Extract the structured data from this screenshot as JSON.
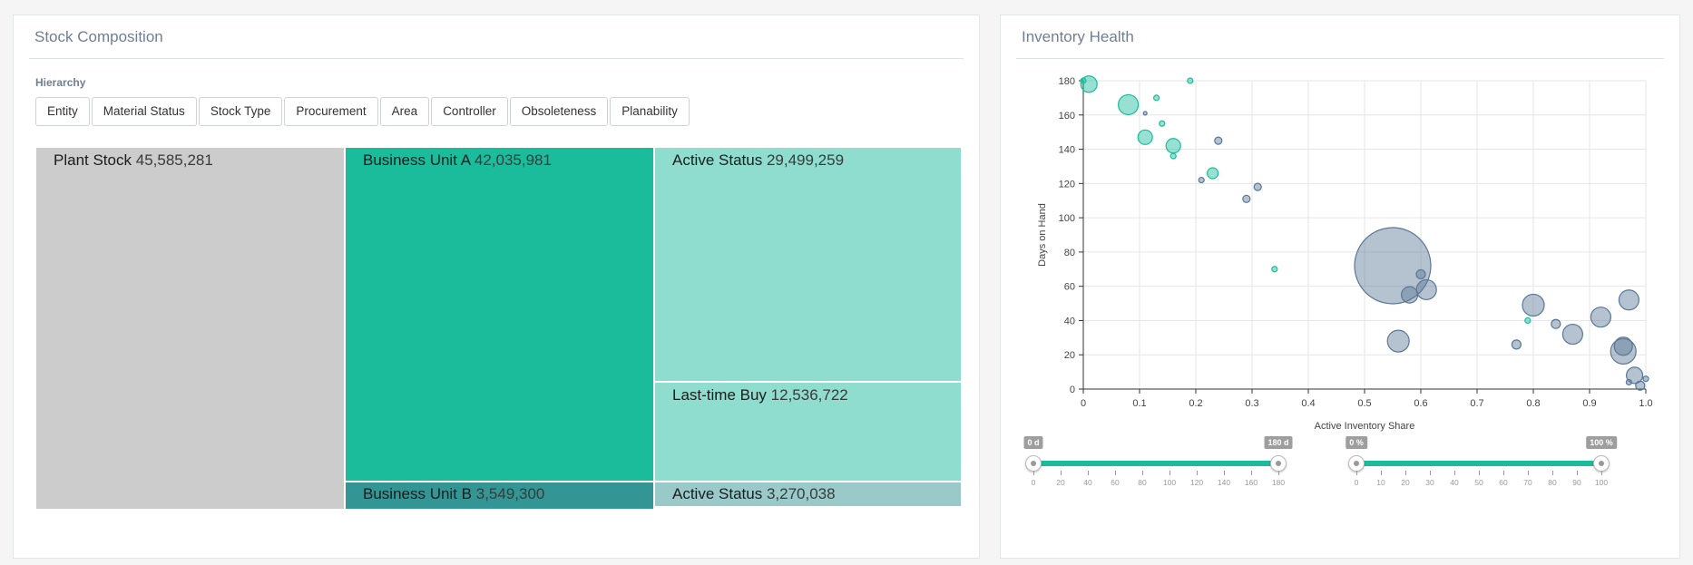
{
  "stock_panel": {
    "title": "Stock Composition",
    "hierarchy_label": "Hierarchy",
    "buttons": [
      "Entity",
      "Material Status",
      "Stock Type",
      "Procurement",
      "Area",
      "Controller",
      "Obsoleteness",
      "Planability"
    ],
    "tiles": [
      {
        "name": "Plant Stock",
        "value": "45,585,281",
        "color": "#cccccc"
      },
      {
        "name": "Business Unit A",
        "value": "42,035,981",
        "color": "#1abc9c"
      },
      {
        "name": "Business Unit B",
        "value": "3,549,300",
        "color": "#339594"
      },
      {
        "name": "Active Status",
        "value": "29,499,259",
        "color": "#8eddce"
      },
      {
        "name": "Last-time Buy",
        "value": "12,536,722",
        "color": "#8eddce"
      },
      {
        "name": "Active Status",
        "value": "3,270,038",
        "color": "#99cac9"
      }
    ]
  },
  "health_panel": {
    "title": "Inventory Health",
    "colors": {
      "teal": "#1abc9c",
      "slate": "#5a7796"
    }
  },
  "chart_data": {
    "type": "scatter",
    "xlabel": "Active Inventory Share",
    "ylabel": "Days on Hand",
    "xlim": [
      0,
      1
    ],
    "ylim": [
      0,
      180
    ],
    "x_ticks": [
      "0",
      "0.1",
      "0.2",
      "0.3",
      "0.4",
      "0.5",
      "0.6",
      "0.7",
      "0.8",
      "0.9",
      "1.0"
    ],
    "y_ticks": [
      "0",
      "20",
      "40",
      "60",
      "80",
      "100",
      "120",
      "140",
      "160",
      "180"
    ],
    "grid": true,
    "series": [
      {
        "color": "teal",
        "points": [
          {
            "x": 0.01,
            "y": 178,
            "r": 9
          },
          {
            "x": 0.0,
            "y": 180,
            "r": 3
          },
          {
            "x": 0.08,
            "y": 166,
            "r": 11
          },
          {
            "x": 0.13,
            "y": 170,
            "r": 3
          },
          {
            "x": 0.19,
            "y": 180,
            "r": 3
          },
          {
            "x": 0.11,
            "y": 147,
            "r": 8
          },
          {
            "x": 0.14,
            "y": 155,
            "r": 3
          },
          {
            "x": 0.16,
            "y": 142,
            "r": 8
          },
          {
            "x": 0.16,
            "y": 136,
            "r": 3
          },
          {
            "x": 0.23,
            "y": 126,
            "r": 6
          },
          {
            "x": 0.34,
            "y": 70,
            "r": 3
          },
          {
            "x": 0.79,
            "y": 40,
            "r": 3
          }
        ]
      },
      {
        "color": "slate",
        "points": [
          {
            "x": 0.11,
            "y": 161,
            "r": 2
          },
          {
            "x": 0.24,
            "y": 145,
            "r": 4
          },
          {
            "x": 0.21,
            "y": 122,
            "r": 3
          },
          {
            "x": 0.29,
            "y": 111,
            "r": 4
          },
          {
            "x": 0.31,
            "y": 118,
            "r": 4
          },
          {
            "x": 0.55,
            "y": 72,
            "r": 42
          },
          {
            "x": 0.6,
            "y": 67,
            "r": 5
          },
          {
            "x": 0.61,
            "y": 58,
            "r": 11
          },
          {
            "x": 0.58,
            "y": 55,
            "r": 9
          },
          {
            "x": 0.56,
            "y": 28,
            "r": 12
          },
          {
            "x": 0.77,
            "y": 26,
            "r": 5
          },
          {
            "x": 0.8,
            "y": 49,
            "r": 12
          },
          {
            "x": 0.84,
            "y": 38,
            "r": 5
          },
          {
            "x": 0.87,
            "y": 32,
            "r": 11
          },
          {
            "x": 0.92,
            "y": 42,
            "r": 11
          },
          {
            "x": 0.97,
            "y": 52,
            "r": 11
          },
          {
            "x": 0.96,
            "y": 22,
            "r": 14
          },
          {
            "x": 0.96,
            "y": 25,
            "r": 10
          },
          {
            "x": 0.98,
            "y": 8,
            "r": 9
          },
          {
            "x": 0.97,
            "y": 4,
            "r": 3
          },
          {
            "x": 0.99,
            "y": 2,
            "r": 5
          },
          {
            "x": 1.0,
            "y": 6,
            "r": 3
          }
        ]
      }
    ]
  },
  "sliders": [
    {
      "name": "days-range-slider",
      "min_label": "0 d",
      "max_label": "180 d",
      "range": [
        0,
        180
      ],
      "value": [
        0,
        180
      ],
      "ticks": [
        "0",
        "20",
        "40",
        "60",
        "80",
        "100",
        "120",
        "140",
        "160",
        "180"
      ]
    },
    {
      "name": "share-range-slider",
      "min_label": "0 %",
      "max_label": "100 %",
      "range": [
        0,
        100
      ],
      "value": [
        0,
        100
      ],
      "ticks": [
        "0",
        "10",
        "20",
        "30",
        "40",
        "50",
        "60",
        "70",
        "80",
        "90",
        "100"
      ]
    }
  ]
}
